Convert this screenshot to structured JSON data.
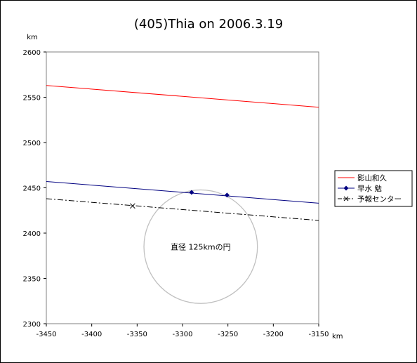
{
  "chart_data": {
    "type": "line",
    "title": "(405)Thia on 2006.3.19",
    "xunit": "km",
    "yunit": "km",
    "xlim": [
      -3450,
      -3150
    ],
    "ylim": [
      2300,
      2600
    ],
    "xticks": [
      -3450,
      -3400,
      -3350,
      -3300,
      -3250,
      -3200,
      -3150
    ],
    "yticks": [
      2300,
      2350,
      2400,
      2450,
      2500,
      2550,
      2600
    ],
    "grid": false,
    "legend_position": "right",
    "series": [
      {
        "name": "影山和久",
        "color": "#ff0000",
        "style": "solid",
        "marker": "none",
        "points": [
          [
            -3450,
            2563
          ],
          [
            -3150,
            2539
          ]
        ]
      },
      {
        "name": "早水 勉",
        "color": "#000080",
        "style": "solid",
        "marker": "diamond",
        "points": [
          [
            -3450,
            2457
          ],
          [
            -3150,
            2433
          ]
        ],
        "markers": [
          [
            -3290,
            2445
          ],
          [
            -3251,
            2442
          ]
        ]
      },
      {
        "name": "予報センター",
        "color": "#000000",
        "style": "dashdot",
        "marker": "x",
        "points": [
          [
            -3450,
            2438
          ],
          [
            -3150,
            2414
          ]
        ],
        "markers": [
          [
            -3355,
            2430
          ]
        ]
      }
    ],
    "circle": {
      "label": "直径 125kmの円",
      "center": [
        -3280,
        2385
      ],
      "diameter": 125,
      "color": "#c0c0c0"
    }
  }
}
